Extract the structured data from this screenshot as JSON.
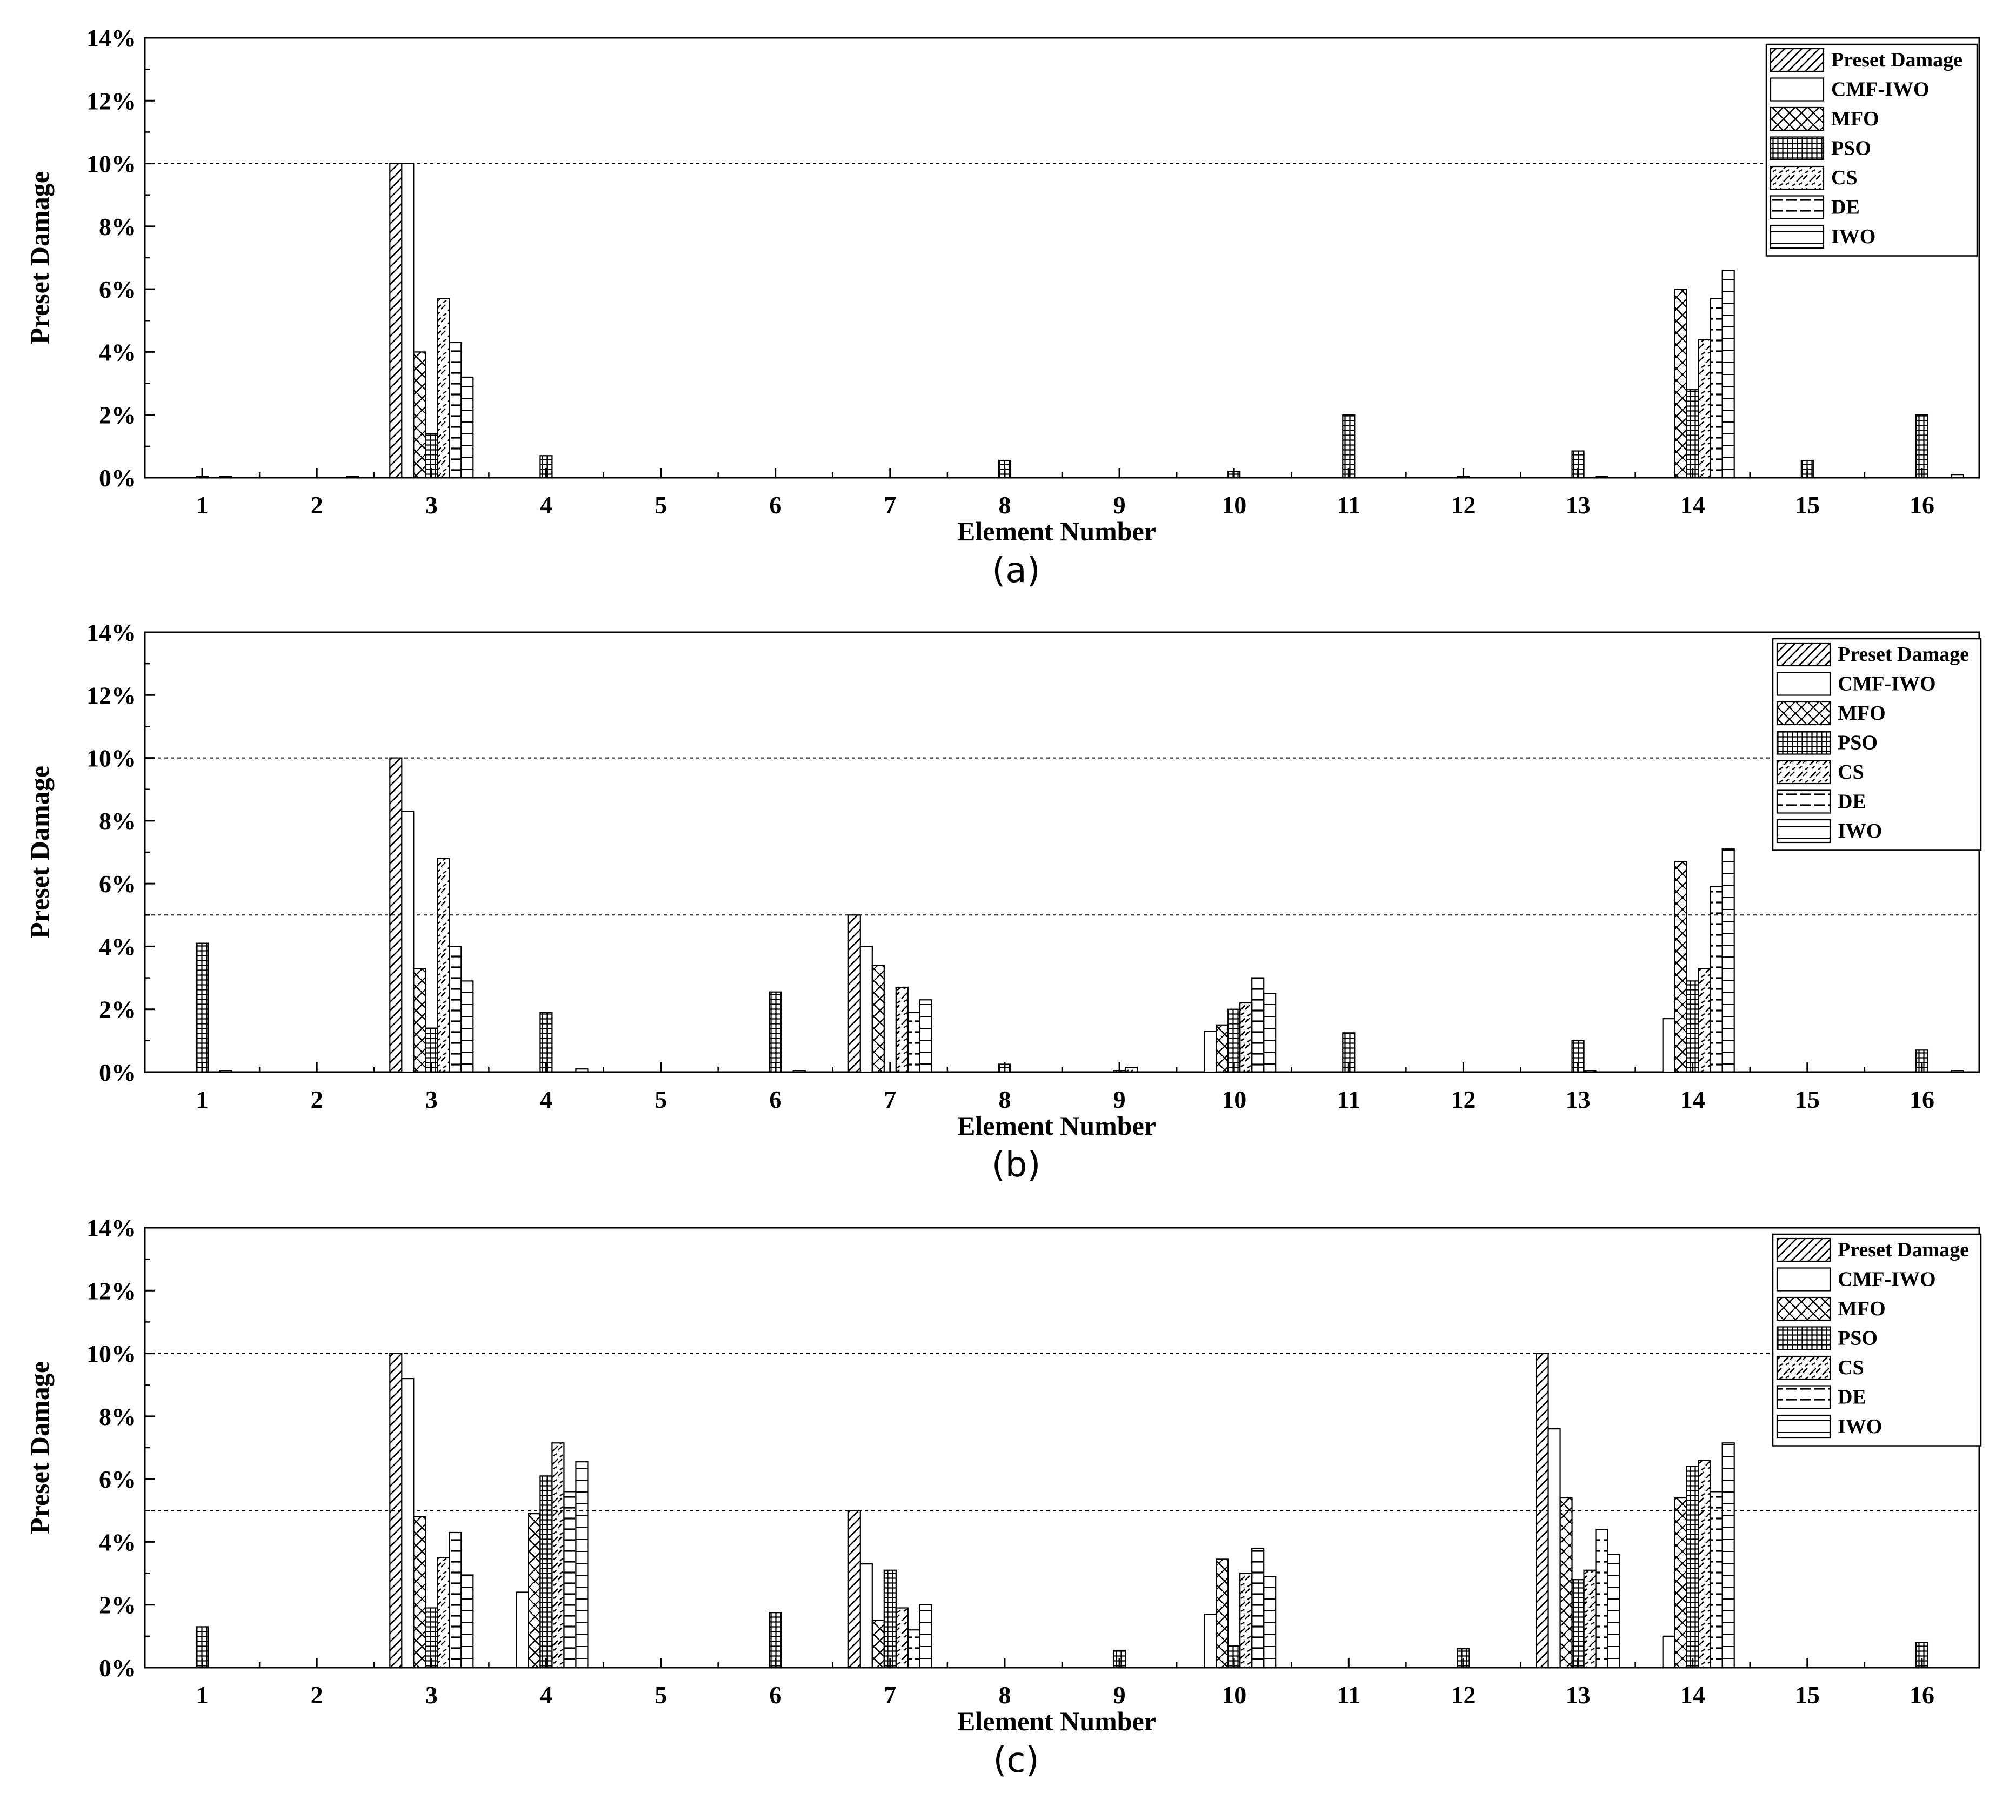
{
  "chart_data": [
    {
      "type": "bar",
      "panel_label": "(a)",
      "xlabel": "Element Number",
      "ylabel": "Preset Damage",
      "ylim": [
        0,
        14
      ],
      "yticks": [
        "0%",
        "2%",
        "4%",
        "6%",
        "8%",
        "10%",
        "12%",
        "14%"
      ],
      "reference_lines": [
        10
      ],
      "legend_position": "top-right",
      "categories": [
        "1",
        "2",
        "3",
        "4",
        "5",
        "6",
        "7",
        "8",
        "9",
        "10",
        "11",
        "12",
        "13",
        "14",
        "15",
        "16"
      ],
      "series": [
        {
          "name": "Preset Damage",
          "values": [
            0,
            0,
            10,
            0,
            0,
            0,
            0,
            0,
            0,
            0,
            0,
            0,
            0,
            0,
            0,
            0
          ]
        },
        {
          "name": "CMF-IWO",
          "values": [
            0,
            0,
            10,
            0,
            0,
            0,
            0,
            0,
            0,
            0,
            0,
            0,
            0,
            0,
            0,
            0
          ]
        },
        {
          "name": "MFO",
          "values": [
            0,
            0,
            4.0,
            0,
            0,
            0,
            0,
            0,
            0,
            0,
            0,
            0,
            0,
            6.0,
            0,
            0
          ]
        },
        {
          "name": "PSO",
          "values": [
            0.05,
            0,
            1.4,
            0.7,
            0,
            0,
            0,
            0.55,
            0,
            0.2,
            2.0,
            0.05,
            0.85,
            2.8,
            0.55,
            2.0
          ]
        },
        {
          "name": "CS",
          "values": [
            0,
            0,
            5.7,
            0,
            0,
            0,
            0,
            0,
            0,
            0,
            0,
            0,
            0,
            4.4,
            0,
            0
          ]
        },
        {
          "name": "DE",
          "values": [
            0.05,
            0,
            4.3,
            0,
            0,
            0,
            0,
            0,
            0,
            0,
            0,
            0,
            0.05,
            5.7,
            0,
            0
          ]
        },
        {
          "name": "IWO",
          "values": [
            0,
            0.05,
            3.2,
            0,
            0,
            0,
            0,
            0,
            0,
            0,
            0,
            0,
            0,
            6.6,
            0,
            0.1
          ]
        }
      ]
    },
    {
      "type": "bar",
      "panel_label": "(b)",
      "xlabel": "Element Number",
      "ylabel": "Preset Damage",
      "ylim": [
        0,
        14
      ],
      "yticks": [
        "0%",
        "2%",
        "4%",
        "6%",
        "8%",
        "10%",
        "12%",
        "14%"
      ],
      "reference_lines": [
        10,
        5
      ],
      "legend_position": "top-right",
      "categories": [
        "1",
        "2",
        "3",
        "4",
        "5",
        "6",
        "7",
        "8",
        "9",
        "10",
        "11",
        "12",
        "13",
        "14",
        "15",
        "16"
      ],
      "series": [
        {
          "name": "Preset Damage",
          "values": [
            0,
            0,
            10,
            0,
            0,
            0,
            5,
            0,
            0,
            0,
            0,
            0,
            0,
            0,
            0,
            0
          ]
        },
        {
          "name": "CMF-IWO",
          "values": [
            0,
            0,
            8.3,
            0,
            0,
            0,
            4.0,
            0,
            0,
            1.3,
            0,
            0,
            0,
            1.7,
            0,
            0
          ]
        },
        {
          "name": "MFO",
          "values": [
            0,
            0,
            3.3,
            0,
            0,
            0,
            3.4,
            0,
            0,
            1.5,
            0,
            0,
            0,
            6.7,
            0,
            0
          ]
        },
        {
          "name": "PSO",
          "values": [
            4.1,
            0,
            1.4,
            1.9,
            0,
            2.55,
            0,
            0.25,
            0.05,
            2.0,
            1.25,
            0,
            1.0,
            2.9,
            0,
            0.7
          ]
        },
        {
          "name": "CS",
          "values": [
            0,
            0,
            6.8,
            0,
            0,
            0,
            2.7,
            0,
            0.15,
            2.2,
            0,
            0,
            0.05,
            3.3,
            0,
            0
          ]
        },
        {
          "name": "DE",
          "values": [
            0.05,
            0,
            4.0,
            0,
            0,
            0.05,
            1.9,
            0,
            0,
            3.0,
            0,
            0,
            0,
            5.9,
            0,
            0
          ]
        },
        {
          "name": "IWO",
          "values": [
            0,
            0,
            2.9,
            0.1,
            0,
            0,
            2.3,
            0,
            0,
            2.5,
            0,
            0,
            0,
            7.1,
            0,
            0.05
          ]
        }
      ]
    },
    {
      "type": "bar",
      "panel_label": "(c)",
      "xlabel": "Element Number",
      "ylabel": "Preset Damage",
      "ylim": [
        0,
        14
      ],
      "yticks": [
        "0%",
        "2%",
        "4%",
        "6%",
        "8%",
        "10%",
        "12%",
        "14%"
      ],
      "reference_lines": [
        10,
        5
      ],
      "legend_position": "top-right",
      "categories": [
        "1",
        "2",
        "3",
        "4",
        "5",
        "6",
        "7",
        "8",
        "9",
        "10",
        "11",
        "12",
        "13",
        "14",
        "15",
        "16"
      ],
      "series": [
        {
          "name": "Preset Damage",
          "values": [
            0,
            0,
            10,
            0,
            0,
            0,
            5,
            0,
            0,
            0,
            0,
            0,
            10,
            0,
            0,
            0
          ]
        },
        {
          "name": "CMF-IWO",
          "values": [
            0,
            0,
            9.2,
            2.4,
            0,
            0,
            3.3,
            0,
            0,
            1.7,
            0,
            0,
            7.6,
            1.0,
            0,
            0
          ]
        },
        {
          "name": "MFO",
          "values": [
            0,
            0,
            4.8,
            4.9,
            0,
            0,
            1.5,
            0,
            0,
            3.45,
            0,
            0,
            5.4,
            5.4,
            0,
            0
          ]
        },
        {
          "name": "PSO",
          "values": [
            1.3,
            0,
            1.9,
            6.1,
            0,
            1.75,
            3.1,
            0,
            0.55,
            0.7,
            0,
            0.6,
            2.8,
            6.4,
            0,
            0.8
          ]
        },
        {
          "name": "CS",
          "values": [
            0,
            0,
            3.5,
            7.15,
            0,
            0,
            1.9,
            0,
            0,
            3.0,
            0,
            0,
            3.1,
            6.6,
            0,
            0
          ]
        },
        {
          "name": "DE",
          "values": [
            0,
            0,
            4.3,
            5.6,
            0,
            0,
            1.2,
            0,
            0,
            3.8,
            0,
            0,
            4.4,
            5.6,
            0,
            0
          ]
        },
        {
          "name": "IWO",
          "values": [
            0,
            0,
            2.95,
            6.55,
            0,
            0,
            2.0,
            0,
            0,
            2.9,
            0,
            0,
            3.6,
            7.15,
            0,
            0
          ]
        }
      ]
    }
  ]
}
